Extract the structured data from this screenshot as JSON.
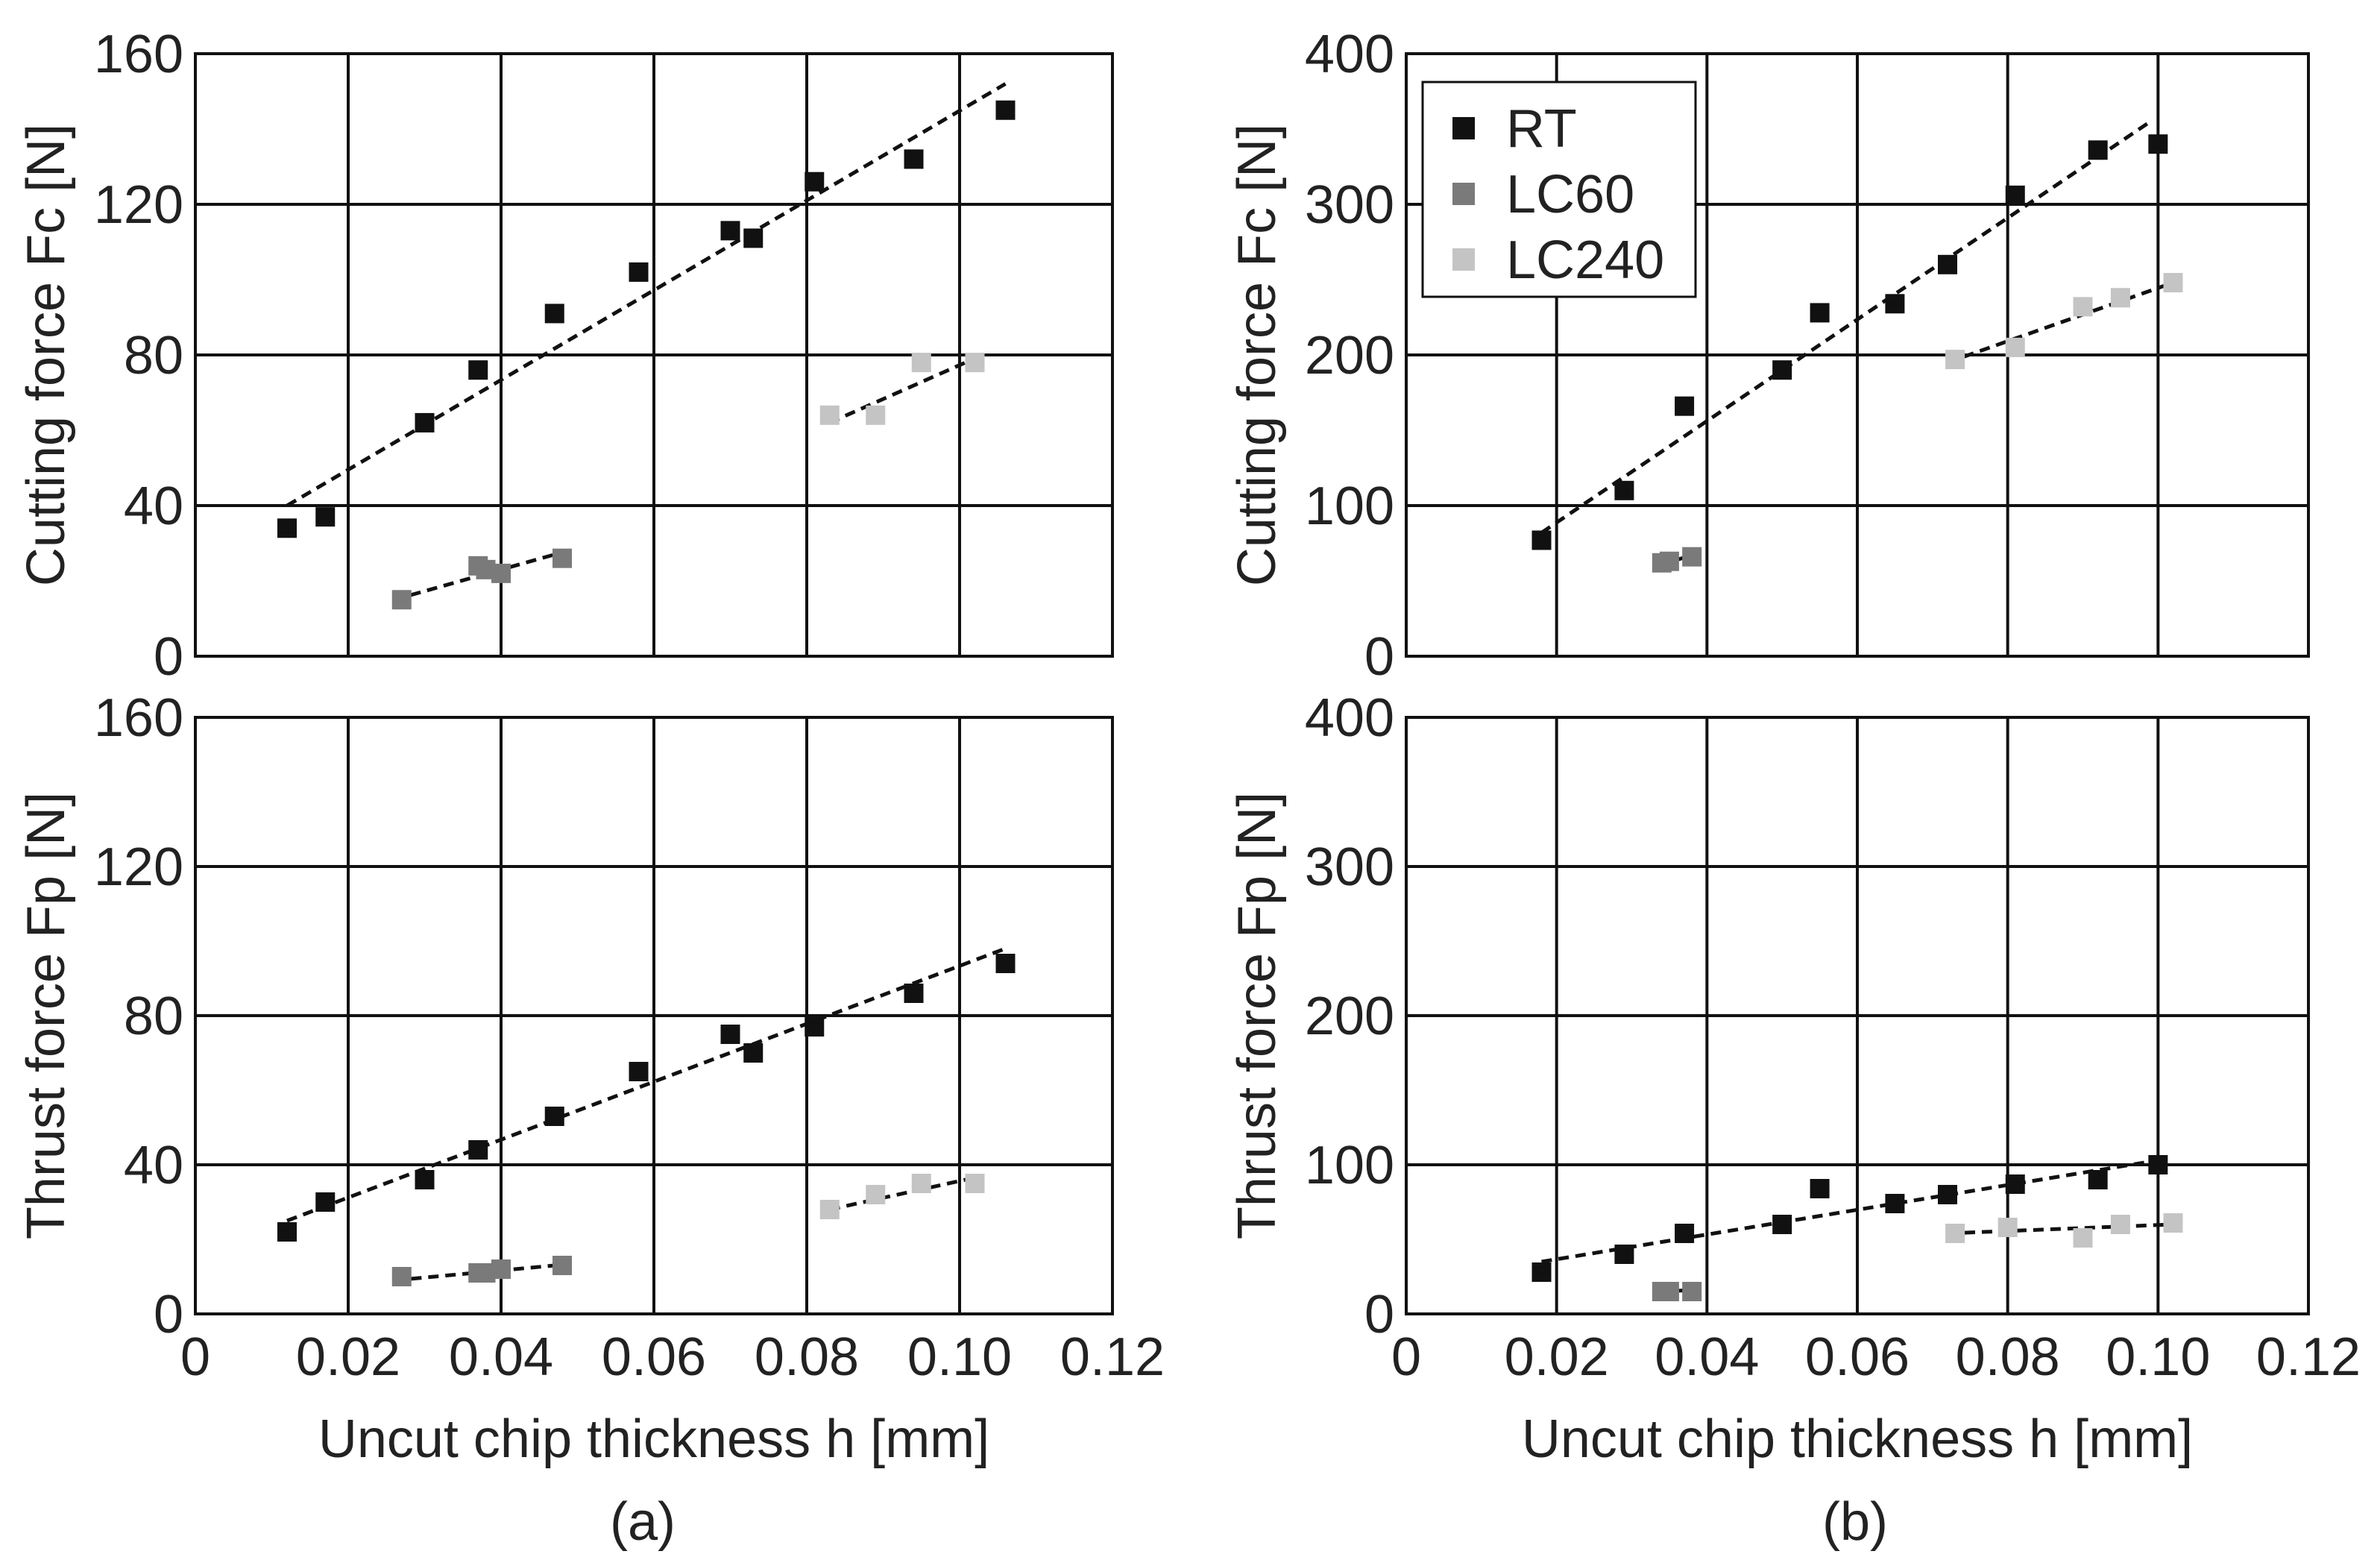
{
  "chart_data": [
    {
      "id": "a_top",
      "type": "scatter",
      "ylabel": "Cutting force Fc [N]",
      "xlabel": "",
      "ylim": [
        0,
        160
      ],
      "yticks": [
        0,
        40,
        80,
        120,
        160
      ],
      "xlim": [
        0,
        0.12
      ],
      "xticks": [],
      "grid": true,
      "series": [
        {
          "name": "RT",
          "color": "#111111",
          "x": [
            0.012,
            0.017,
            0.03,
            0.037,
            0.047,
            0.058,
            0.07,
            0.073,
            0.081,
            0.094,
            0.106
          ],
          "y": [
            34,
            37,
            62,
            76,
            91,
            102,
            113,
            111,
            126,
            132,
            145
          ],
          "fit": [
            [
              0.012,
              40
            ],
            [
              0.106,
              152
            ]
          ]
        },
        {
          "name": "LC60",
          "color": "#7a7a7a",
          "x": [
            0.027,
            0.037,
            0.038,
            0.04,
            0.048
          ],
          "y": [
            15,
            24,
            23,
            22,
            26
          ],
          "fit": [
            [
              0.026,
              15
            ],
            [
              0.047,
              27
            ]
          ]
        },
        {
          "name": "LC240",
          "color": "#c4c4c4",
          "x": [
            0.083,
            0.089,
            0.095,
            0.102
          ],
          "y": [
            64,
            64,
            78,
            78
          ],
          "fit": [
            [
              0.083,
              62
            ],
            [
              0.103,
              80
            ]
          ]
        }
      ]
    },
    {
      "id": "a_bottom",
      "type": "scatter",
      "ylabel": "Thrust force Fp [N]",
      "xlabel": "Uncut chip thickness h [mm]",
      "ylim": [
        0,
        160
      ],
      "yticks": [
        0,
        40,
        80,
        120,
        160
      ],
      "xlim": [
        0,
        0.12
      ],
      "xticks": [
        "0",
        "0.02",
        "0.04",
        "0.06",
        "0.08",
        "0.10",
        "0.12"
      ],
      "grid": true,
      "series": [
        {
          "name": "RT",
          "color": "#111111",
          "x": [
            0.012,
            0.017,
            0.03,
            0.037,
            0.047,
            0.058,
            0.07,
            0.073,
            0.081,
            0.094,
            0.106
          ],
          "y": [
            22,
            30,
            36,
            44,
            53,
            65,
            75,
            70,
            77,
            86,
            94
          ],
          "fit": [
            [
              0.012,
              25
            ],
            [
              0.106,
              98
            ]
          ]
        },
        {
          "name": "LC60",
          "color": "#7a7a7a",
          "x": [
            0.027,
            0.037,
            0.038,
            0.04,
            0.048
          ],
          "y": [
            10,
            11,
            11,
            12,
            13
          ],
          "fit": [
            [
              0.026,
              9
            ],
            [
              0.047,
              13
            ]
          ]
        },
        {
          "name": "LC240",
          "color": "#c4c4c4",
          "x": [
            0.083,
            0.089,
            0.095,
            0.102
          ],
          "y": [
            28,
            32,
            35,
            35
          ],
          "fit": [
            [
              0.083,
              28
            ],
            [
              0.103,
              37
            ]
          ]
        }
      ]
    },
    {
      "id": "b_top",
      "type": "scatter",
      "ylabel": "Cutting force Fc [N]",
      "xlabel": "",
      "ylim": [
        0,
        400
      ],
      "yticks": [
        0,
        100,
        200,
        300,
        400
      ],
      "xlim": [
        0,
        0.12
      ],
      "xticks": [],
      "grid": true,
      "legend": {
        "position": "top-left",
        "entries": [
          {
            "label": "RT",
            "color": "#111111"
          },
          {
            "label": "LC60",
            "color": "#7a7a7a"
          },
          {
            "label": "LC240",
            "color": "#c4c4c4"
          }
        ]
      },
      "series": [
        {
          "name": "RT",
          "color": "#111111",
          "x": [
            0.018,
            0.029,
            0.037,
            0.05,
            0.055,
            0.065,
            0.072,
            0.081,
            0.092,
            0.1
          ],
          "y": [
            77,
            110,
            166,
            190,
            228,
            234,
            260,
            306,
            336,
            340
          ],
          "fit": [
            [
              0.018,
              82
            ],
            [
              0.099,
              355
            ]
          ]
        },
        {
          "name": "LC60",
          "color": "#7a7a7a",
          "x": [
            0.034,
            0.035,
            0.038
          ],
          "y": [
            62,
            63,
            66
          ],
          "fit": [
            [
              0.034,
              61
            ],
            [
              0.038,
              67
            ]
          ]
        },
        {
          "name": "LC240",
          "color": "#c4c4c4",
          "x": [
            0.073,
            0.081,
            0.09,
            0.095,
            0.102
          ],
          "y": [
            197,
            205,
            232,
            238,
            248
          ],
          "fit": [
            [
              0.072,
              195
            ],
            [
              0.102,
              248
            ]
          ]
        }
      ]
    },
    {
      "id": "b_bottom",
      "type": "scatter",
      "ylabel": "Thrust force Fp [N]",
      "xlabel": "Uncut chip thickness h [mm]",
      "ylim": [
        0,
        400
      ],
      "yticks": [
        0,
        100,
        200,
        300,
        400
      ],
      "xlim": [
        0,
        0.12
      ],
      "xticks": [
        "0",
        "0.02",
        "0.04",
        "0.06",
        "0.08",
        "0.10",
        "0.12"
      ],
      "grid": true,
      "series": [
        {
          "name": "RT",
          "color": "#111111",
          "x": [
            0.018,
            0.029,
            0.037,
            0.05,
            0.055,
            0.065,
            0.072,
            0.081,
            0.092,
            0.1
          ],
          "y": [
            28,
            40,
            54,
            60,
            84,
            74,
            80,
            87,
            90,
            100
          ],
          "fit": [
            [
              0.018,
              35
            ],
            [
              0.1,
              103
            ]
          ]
        },
        {
          "name": "LC60",
          "color": "#7a7a7a",
          "x": [
            0.034,
            0.035,
            0.038
          ],
          "y": [
            15,
            15,
            15
          ],
          "fit": [
            [
              0.034,
              15
            ],
            [
              0.038,
              16
            ]
          ]
        },
        {
          "name": "LC240",
          "color": "#c4c4c4",
          "x": [
            0.073,
            0.08,
            0.09,
            0.095,
            0.102
          ],
          "y": [
            54,
            58,
            51,
            60,
            61
          ],
          "fit": [
            [
              0.072,
              54
            ],
            [
              0.102,
              60
            ]
          ]
        }
      ]
    }
  ],
  "panel_labels": {
    "a": "(a)",
    "b": "(b)"
  }
}
